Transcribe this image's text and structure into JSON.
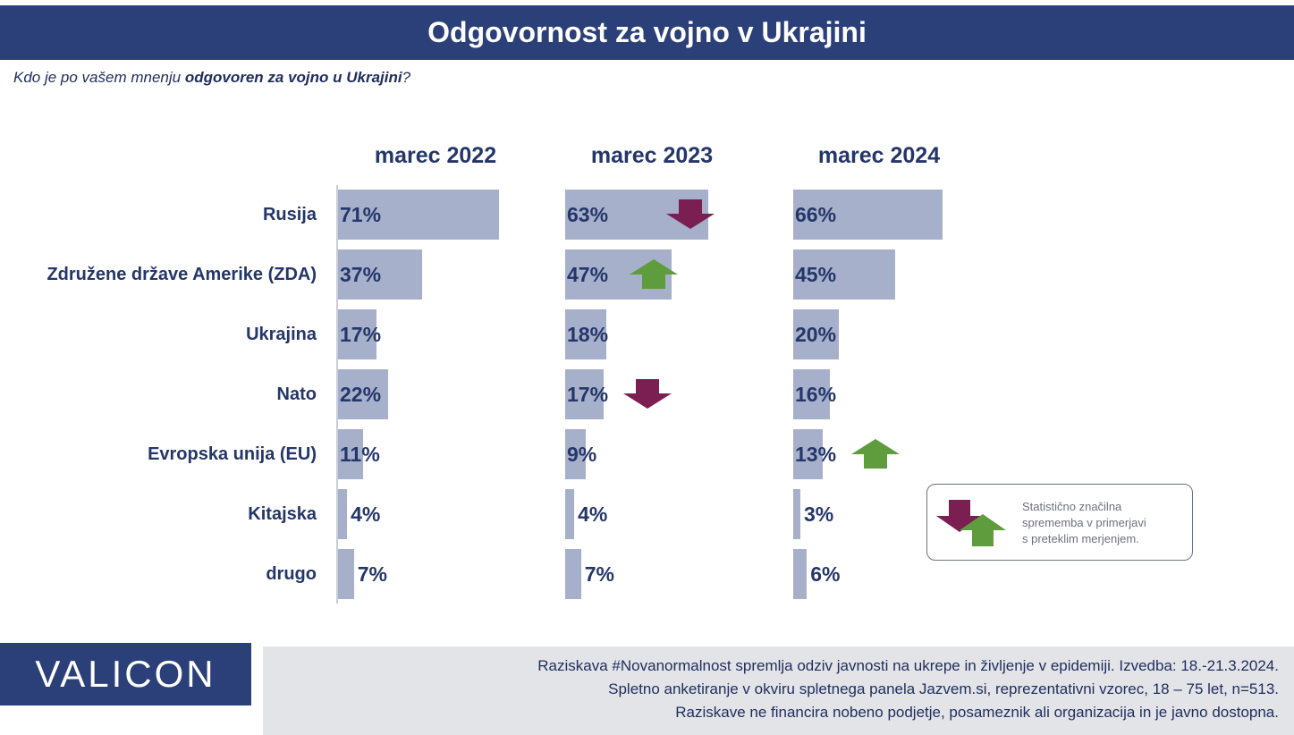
{
  "header": {
    "title": "Odgovornost za vojno v Ukrajini",
    "question_pre": "Kdo je po vašem mnenju ",
    "question_bold": "odgovoren za vojno u Ukrajini",
    "question_post": "?"
  },
  "chart_data": {
    "type": "bar",
    "orientation": "horizontal",
    "categories": [
      "Rusija",
      "Združene države Amerike (ZDA)",
      "Ukrajina",
      "Nato",
      "Evropska unija (EU)",
      "Kitajska",
      "drugo"
    ],
    "series": [
      {
        "name": "marec 2022",
        "values": [
          71,
          37,
          17,
          22,
          11,
          4,
          7
        ],
        "labels": [
          "71%",
          "37%",
          "17%",
          "22%",
          "11%",
          "4%",
          "7%"
        ],
        "changes": [
          "",
          "",
          "",
          "",
          "",
          "",
          ""
        ]
      },
      {
        "name": "marec 2023",
        "values": [
          63,
          47,
          18,
          17,
          9,
          4,
          7
        ],
        "labels": [
          "63%",
          "47%",
          "18%",
          "17%",
          "9%",
          "4%",
          "7%"
        ],
        "changes": [
          "down",
          "up",
          "",
          "down",
          "",
          "",
          ""
        ]
      },
      {
        "name": "marec 2024",
        "values": [
          66,
          45,
          20,
          16,
          13,
          3,
          6
        ],
        "labels": [
          "66%",
          "45%",
          "20%",
          "16%",
          "13%",
          "3%",
          "6%"
        ],
        "changes": [
          "",
          "",
          "",
          "",
          "up",
          "",
          ""
        ]
      }
    ],
    "unit": "%",
    "colors": {
      "bar": "#a6b0ca",
      "down": "#7b1f52",
      "up": "#5e9c3d",
      "text": "#24366a"
    }
  },
  "legend": {
    "lines": [
      "Statistično značilna",
      "sprememba v primerjavi",
      "s preteklim merjenjem."
    ],
    "icons": [
      "arrow-down-icon",
      "arrow-up-icon"
    ]
  },
  "logo": {
    "text": "VALICON"
  },
  "footer": {
    "lines": [
      "Raziskava #Novanormalnost spremlja odziv javnosti na ukrepe in življenje v epidemiji. Izvedba: 18.-21.3.2024.",
      "Spletno anketiranje v okviru spletnega panela Jazvem.si, reprezentativni vzorec, 18 – 75 let, n=513.",
      "Raziskave ne financira nobeno podjetje, posameznik ali organizacija in je javno dostopna."
    ]
  }
}
